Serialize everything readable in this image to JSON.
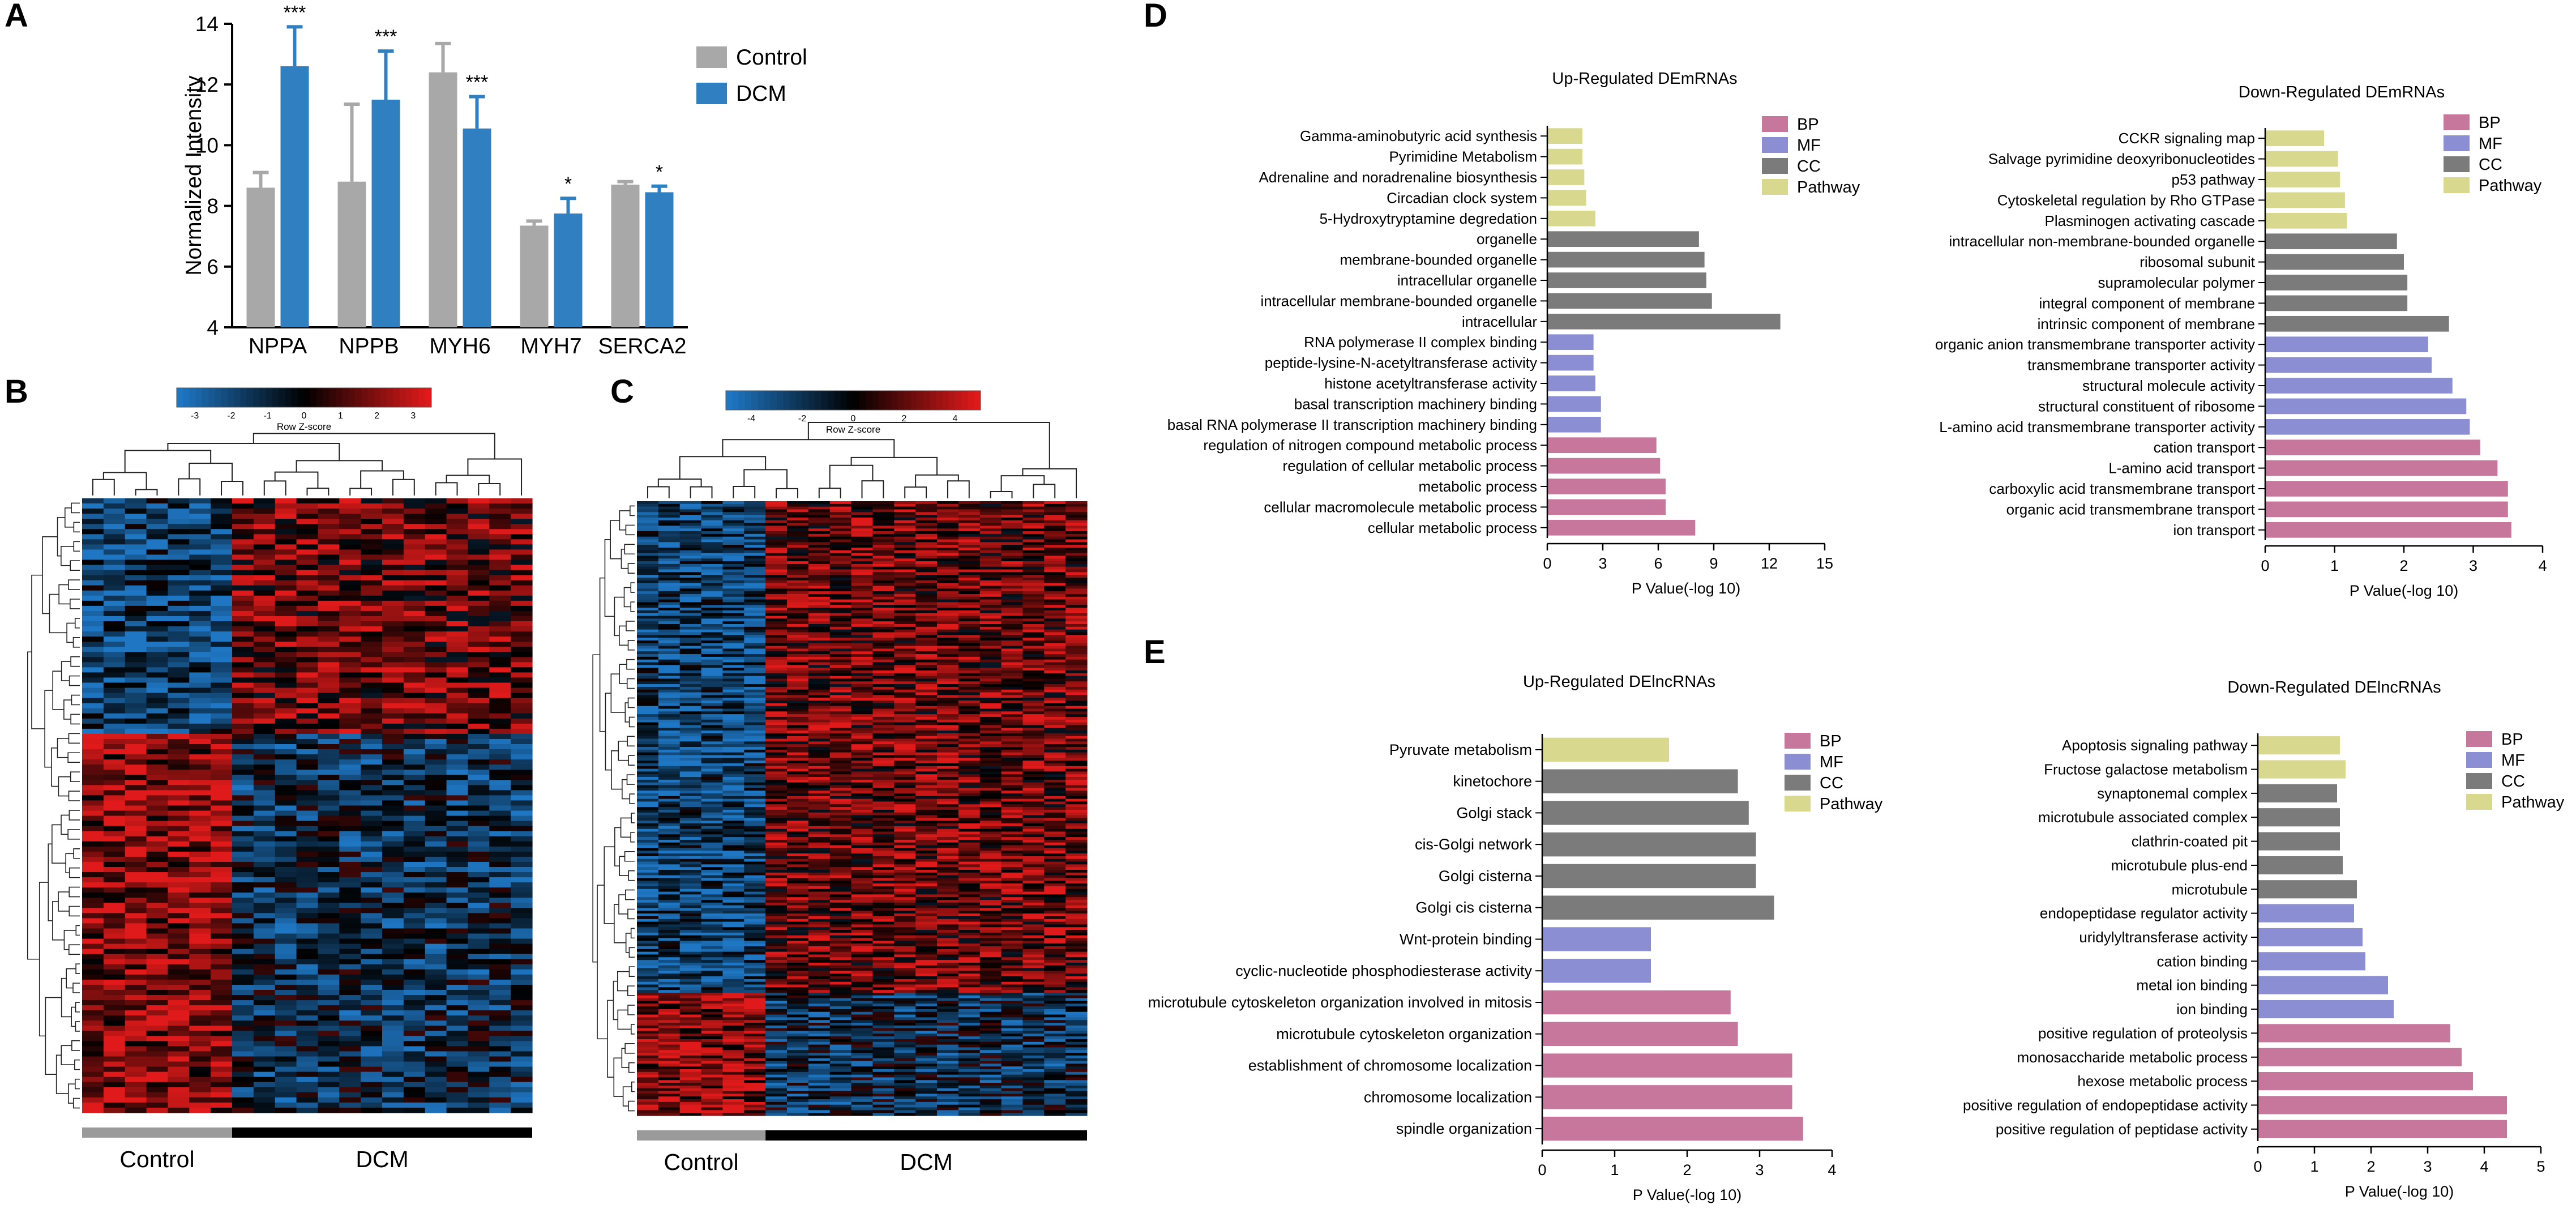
{
  "panels": [
    "A",
    "B",
    "C",
    "D",
    "E"
  ],
  "colors": {
    "control": "#a8a8a8",
    "dcm": "#2f7fc1",
    "BP": "#c7779c",
    "MF": "#8c8ed4",
    "CC": "#7b7b7b",
    "Pathway": "#d9d88f",
    "heat_low": "#1f77c4",
    "heat_mid": "#000000",
    "heat_high": "#e01a1a"
  },
  "chart_data": [
    {
      "id": "A",
      "type": "bar",
      "ylabel": "Normalized  Intensity",
      "ylim": [
        4,
        14
      ],
      "yticks": [
        4,
        6,
        8,
        10,
        12,
        14
      ],
      "categories": [
        "NPPA",
        "NPPB",
        "MYH6",
        "MYH7",
        "SERCA2"
      ],
      "series": [
        {
          "name": "Control",
          "values": [
            8.6,
            8.8,
            12.4,
            7.35,
            8.7
          ],
          "errors": [
            0.5,
            2.55,
            0.95,
            0.15,
            0.1
          ]
        },
        {
          "name": "DCM",
          "values": [
            12.6,
            11.5,
            10.55,
            7.75,
            8.45
          ],
          "errors": [
            1.3,
            1.6,
            1.05,
            0.5,
            0.2
          ]
        }
      ],
      "significance": [
        "***",
        "***",
        "***",
        "*",
        "*"
      ],
      "legend": "top-right"
    },
    {
      "id": "B",
      "type": "heatmap",
      "colorbar_title": "Row Z-score",
      "colorbar_ticks": [
        "-3",
        "-2",
        "-1",
        "0",
        "1",
        "2",
        "3"
      ],
      "groups": [
        {
          "name": "Control",
          "columns": 7
        },
        {
          "name": "DCM",
          "columns": 14
        }
      ],
      "gene_clusters": [
        {
          "name": "up in DCM",
          "rows": 46
        },
        {
          "name": "down in DCM",
          "rows": 74
        }
      ]
    },
    {
      "id": "C",
      "type": "heatmap",
      "colorbar_title": "Row Z-score",
      "colorbar_ticks": [
        "-4",
        "-2",
        "0",
        "2",
        "4"
      ],
      "groups": [
        {
          "name": "Control",
          "columns": 6
        },
        {
          "name": "DCM",
          "columns": 15
        }
      ],
      "gene_clusters": [
        {
          "name": "up in DCM",
          "rows": 180
        },
        {
          "name": "down in DCM",
          "rows": 45
        }
      ]
    },
    {
      "id": "D1",
      "type": "bar",
      "orientation": "horizontal",
      "title": "Up-Regulated DEmRNAs",
      "xlabel": "P Value(-log 10)",
      "xlim": [
        0,
        15
      ],
      "xticks": [
        0,
        3,
        6,
        9,
        12,
        15
      ],
      "legend": [
        "BP",
        "MF",
        "CC",
        "Pathway"
      ],
      "items": [
        {
          "label": "Gamma-aminobutyric acid synthesis",
          "cat": "Pathway",
          "value": 1.9
        },
        {
          "label": "Pyrimidine Metabolism",
          "cat": "Pathway",
          "value": 1.9
        },
        {
          "label": "Adrenaline and noradrenaline biosynthesis",
          "cat": "Pathway",
          "value": 2.0
        },
        {
          "label": "Circadian clock system",
          "cat": "Pathway",
          "value": 2.1
        },
        {
          "label": "5-Hydroxytryptamine degredation",
          "cat": "Pathway",
          "value": 2.6
        },
        {
          "label": "organelle",
          "cat": "CC",
          "value": 8.2
        },
        {
          "label": "membrane-bounded organelle",
          "cat": "CC",
          "value": 8.5
        },
        {
          "label": "intracellular organelle",
          "cat": "CC",
          "value": 8.6
        },
        {
          "label": "intracellular membrane-bounded organelle",
          "cat": "CC",
          "value": 8.9
        },
        {
          "label": "intracellular",
          "cat": "CC",
          "value": 12.6
        },
        {
          "label": "RNA polymerase II complex binding",
          "cat": "MF",
          "value": 2.5
        },
        {
          "label": "peptide-lysine-N-acetyltransferase activity",
          "cat": "MF",
          "value": 2.5
        },
        {
          "label": "histone acetyltransferase activity",
          "cat": "MF",
          "value": 2.6
        },
        {
          "label": "basal transcription machinery binding",
          "cat": "MF",
          "value": 2.9
        },
        {
          "label": "basal RNA polymerase II transcription machinery binding",
          "cat": "MF",
          "value": 2.9
        },
        {
          "label": "regulation of nitrogen compound metabolic process",
          "cat": "BP",
          "value": 5.9
        },
        {
          "label": "regulation of cellular metabolic process",
          "cat": "BP",
          "value": 6.1
        },
        {
          "label": "metabolic process",
          "cat": "BP",
          "value": 6.4
        },
        {
          "label": "cellular macromolecule metabolic process",
          "cat": "BP",
          "value": 6.4
        },
        {
          "label": "cellular metabolic process",
          "cat": "BP",
          "value": 8.0
        }
      ]
    },
    {
      "id": "D2",
      "type": "bar",
      "orientation": "horizontal",
      "title": "Down-Regulated DEmRNAs",
      "xlabel": "P Value(-log 10)",
      "xlim": [
        0,
        4
      ],
      "xticks": [
        0,
        1,
        2,
        3,
        4
      ],
      "legend": [
        "BP",
        "MF",
        "CC",
        "Pathway"
      ],
      "items": [
        {
          "label": "CCKR signaling map",
          "cat": "Pathway",
          "value": 0.85
        },
        {
          "label": "Salvage pyrimidine deoxyribonucleotides",
          "cat": "Pathway",
          "value": 1.05
        },
        {
          "label": "p53 pathway",
          "cat": "Pathway",
          "value": 1.08
        },
        {
          "label": "Cytoskeletal regulation by Rho GTPase",
          "cat": "Pathway",
          "value": 1.15
        },
        {
          "label": "Plasminogen activating cascade",
          "cat": "Pathway",
          "value": 1.18
        },
        {
          "label": "intracellular non-membrane-bounded organelle",
          "cat": "CC",
          "value": 1.9
        },
        {
          "label": "ribosomal subunit",
          "cat": "CC",
          "value": 2.0
        },
        {
          "label": "supramolecular polymer",
          "cat": "CC",
          "value": 2.05
        },
        {
          "label": "integral component of membrane",
          "cat": "CC",
          "value": 2.05
        },
        {
          "label": "intrinsic component of membrane",
          "cat": "CC",
          "value": 2.65
        },
        {
          "label": "organic anion transmembrane transporter activity",
          "cat": "MF",
          "value": 2.35
        },
        {
          "label": "transmembrane transporter activity",
          "cat": "MF",
          "value": 2.4
        },
        {
          "label": "structural molecule activity",
          "cat": "MF",
          "value": 2.7
        },
        {
          "label": "structural constituent of ribosome",
          "cat": "MF",
          "value": 2.9
        },
        {
          "label": "L-amino acid transmembrane transporter activity",
          "cat": "MF",
          "value": 2.95
        },
        {
          "label": "cation transport",
          "cat": "BP",
          "value": 3.1
        },
        {
          "label": "L-amino acid transport",
          "cat": "BP",
          "value": 3.35
        },
        {
          "label": "carboxylic acid transmembrane transport",
          "cat": "BP",
          "value": 3.5
        },
        {
          "label": "organic acid transmembrane transport",
          "cat": "BP",
          "value": 3.5
        },
        {
          "label": "ion transport",
          "cat": "BP",
          "value": 3.55
        }
      ]
    },
    {
      "id": "E1",
      "type": "bar",
      "orientation": "horizontal",
      "title": "Up-Regulated DElncRNAs",
      "xlabel": "P Value(-log 10)",
      "xlim": [
        0,
        4
      ],
      "xticks": [
        0,
        1,
        2,
        3,
        4
      ],
      "legend": [
        "BP",
        "MF",
        "CC",
        "Pathway"
      ],
      "items": [
        {
          "label": "Pyruvate metabolism",
          "cat": "Pathway",
          "value": 1.75
        },
        {
          "label": "kinetochore",
          "cat": "CC",
          "value": 2.7
        },
        {
          "label": "Golgi stack",
          "cat": "CC",
          "value": 2.85
        },
        {
          "label": "cis-Golgi network",
          "cat": "CC",
          "value": 2.95
        },
        {
          "label": "Golgi cisterna",
          "cat": "CC",
          "value": 2.95
        },
        {
          "label": "Golgi cis cisterna",
          "cat": "CC",
          "value": 3.2
        },
        {
          "label": "Wnt-protein binding",
          "cat": "MF",
          "value": 1.5
        },
        {
          "label": "cyclic-nucleotide phosphodiesterase activity",
          "cat": "MF",
          "value": 1.5
        },
        {
          "label": "microtubule cytoskeleton organization involved in mitosis",
          "cat": "BP",
          "value": 2.6
        },
        {
          "label": "microtubule cytoskeleton organization",
          "cat": "BP",
          "value": 2.7
        },
        {
          "label": "establishment of chromosome localization",
          "cat": "BP",
          "value": 3.45
        },
        {
          "label": "chromosome localization",
          "cat": "BP",
          "value": 3.45
        },
        {
          "label": "spindle organization",
          "cat": "BP",
          "value": 3.6
        }
      ]
    },
    {
      "id": "E2",
      "type": "bar",
      "orientation": "horizontal",
      "title": "Down-Regulated DElncRNAs",
      "xlabel": "P Value(-log 10)",
      "xlim": [
        0,
        5
      ],
      "xticks": [
        0,
        1,
        2,
        3,
        4,
        5
      ],
      "legend": [
        "BP",
        "MF",
        "CC",
        "Pathway"
      ],
      "items": [
        {
          "label": "Apoptosis signaling pathway",
          "cat": "Pathway",
          "value": 1.45
        },
        {
          "label": "Fructose galactose metabolism",
          "cat": "Pathway",
          "value": 1.55
        },
        {
          "label": "synaptonemal complex",
          "cat": "CC",
          "value": 1.4
        },
        {
          "label": "microtubule associated complex",
          "cat": "CC",
          "value": 1.45
        },
        {
          "label": "clathrin-coated pit",
          "cat": "CC",
          "value": 1.45
        },
        {
          "label": "microtubule plus-end",
          "cat": "CC",
          "value": 1.5
        },
        {
          "label": "microtubule",
          "cat": "CC",
          "value": 1.75
        },
        {
          "label": "endopeptidase regulator activity",
          "cat": "MF",
          "value": 1.7
        },
        {
          "label": "uridylyltransferase activity",
          "cat": "MF",
          "value": 1.85
        },
        {
          "label": "cation binding",
          "cat": "MF",
          "value": 1.9
        },
        {
          "label": "metal ion binding",
          "cat": "MF",
          "value": 2.3
        },
        {
          "label": "ion binding",
          "cat": "MF",
          "value": 2.4
        },
        {
          "label": "positive regulation of proteolysis",
          "cat": "BP",
          "value": 3.4
        },
        {
          "label": "monosaccharide metabolic process",
          "cat": "BP",
          "value": 3.6
        },
        {
          "label": "hexose metabolic process",
          "cat": "BP",
          "value": 3.8
        },
        {
          "label": "positive regulation of endopeptidase activity",
          "cat": "BP",
          "value": 4.4
        },
        {
          "label": "positive regulation of peptidase activity",
          "cat": "BP",
          "value": 4.4
        }
      ]
    }
  ]
}
